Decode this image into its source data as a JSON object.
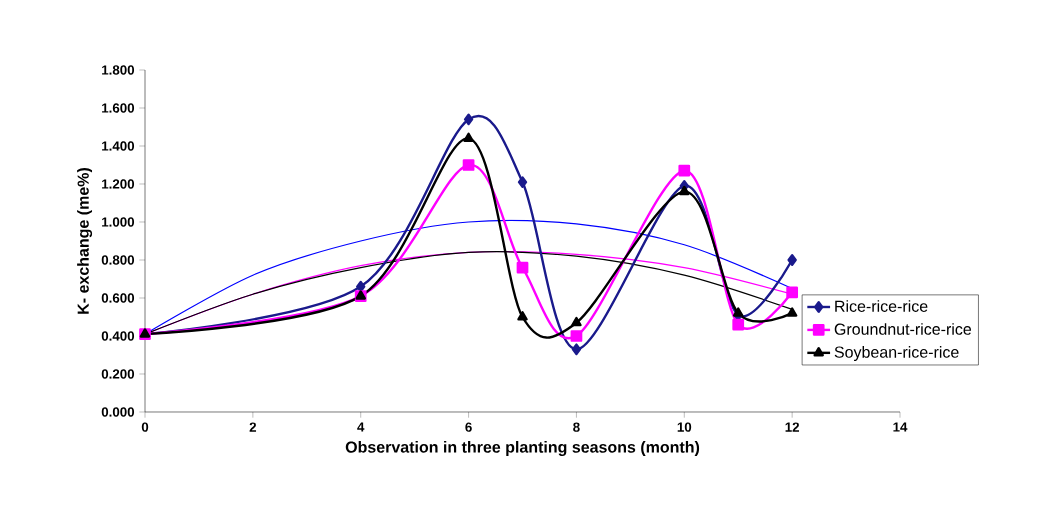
{
  "chart_data": {
    "type": "line",
    "xlabel": "Observation in three planting seasons (month)",
    "ylabel": "K- exchange (me%)",
    "xlim": [
      0,
      14
    ],
    "xticks": [
      0,
      2,
      4,
      6,
      8,
      10,
      12,
      14
    ],
    "ylim": [
      0,
      1.8
    ],
    "yticks": [
      {
        "value": 0,
        "label": "0.000"
      },
      {
        "value": 0.2,
        "label": "0.200"
      },
      {
        "value": 0.4,
        "label": "0.400"
      },
      {
        "value": 0.6,
        "label": "0.600"
      },
      {
        "value": 0.8,
        "label": "0.800"
      },
      {
        "value": 1.0,
        "label": "1.000"
      },
      {
        "value": 1.2,
        "label": "1.200"
      },
      {
        "value": 1.4,
        "label": "1.400"
      },
      {
        "value": 1.6,
        "label": "1.600"
      },
      {
        "value": 1.8,
        "label": "1.800"
      }
    ],
    "x": [
      0,
      4,
      6,
      7,
      8,
      10,
      11,
      12
    ],
    "legend": "right",
    "grid": false,
    "line_style": "solid",
    "series": [
      {
        "name": "Rice-rice-rice",
        "color": "#1a1a8c",
        "marker": "diamond",
        "values": [
          0.41,
          0.66,
          1.54,
          1.21,
          0.33,
          1.19,
          0.51,
          0.8
        ]
      },
      {
        "name": "Groundnut-rice-rice",
        "color": "#ff00ff",
        "marker": "square",
        "values": [
          0.41,
          0.61,
          1.3,
          0.76,
          0.4,
          1.27,
          0.46,
          0.63
        ]
      },
      {
        "name": "Soybean-rice-rice",
        "color": "#000000",
        "marker": "triangle",
        "values": [
          0.41,
          0.61,
          1.44,
          0.5,
          0.47,
          1.16,
          0.52,
          0.52
        ]
      },
      {
        "type": "line",
        "color": "#0000ff",
        "marker": "none",
        "x": [
          0,
          2,
          4,
          6,
          8,
          10,
          12
        ],
        "values": [
          0.41,
          0.72,
          0.9,
          1.0,
          0.99,
          0.88,
          0.65
        ]
      },
      {
        "type": "line",
        "color": "#ff00ff",
        "marker": "none",
        "x": [
          0,
          2,
          4,
          6,
          8,
          10,
          12
        ],
        "values": [
          0.41,
          0.62,
          0.77,
          0.84,
          0.83,
          0.76,
          0.62
        ]
      },
      {
        "type": "line",
        "color": "#000000",
        "marker": "none",
        "x": [
          0,
          2,
          4,
          6,
          8,
          10,
          12
        ],
        "values": [
          0.41,
          0.62,
          0.76,
          0.84,
          0.82,
          0.72,
          0.54
        ]
      }
    ]
  }
}
